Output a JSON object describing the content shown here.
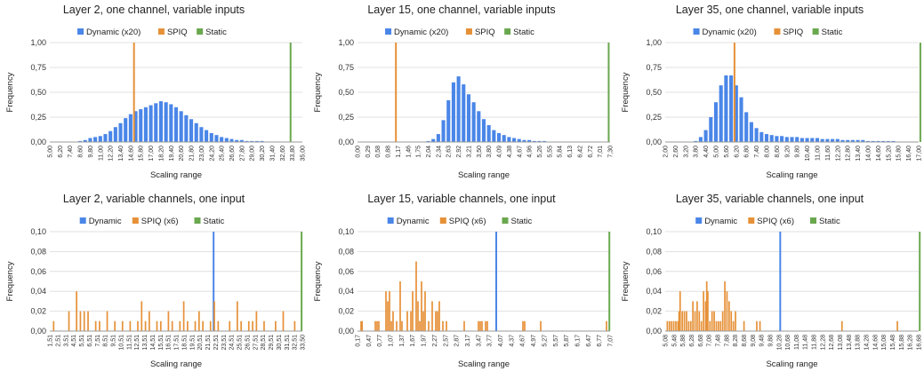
{
  "colors": {
    "dynamic": "#4a86e8",
    "spiq": "#e69138",
    "static": "#6aa84f"
  },
  "chart_data": [
    {
      "type": "bar",
      "title": "Layer 2, one channel, variable inputs",
      "xlabel": "Scaling range",
      "ylabel": "Frequency",
      "ylim": [
        0,
        1
      ],
      "yticks": [
        "0,00",
        "0,25",
        "0,50",
        "0,75",
        "1,00"
      ],
      "legend": {
        "placement": "top",
        "entries": [
          "Dynamic (x20)",
          "SPIQ",
          "Static"
        ]
      },
      "x_ticks": [
        "5,00",
        "6,20",
        "7,40",
        "8,60",
        "9,80",
        "11,00",
        "12,20",
        "13,40",
        "14,60",
        "15,80",
        "17,00",
        "18,20",
        "19,40",
        "20,60",
        "21,80",
        "23,00",
        "24,20",
        "25,40",
        "26,60",
        "27,80",
        "29,00",
        "30,20",
        "31,40",
        "32,60",
        "33,80",
        "35,00"
      ],
      "x_range": [
        5.0,
        35.0
      ],
      "series": [
        {
          "name": "Dynamic (x20)",
          "kind": "bars",
          "x": [
            5.0,
            5.6,
            6.2,
            6.8,
            7.4,
            8.0,
            8.6,
            9.2,
            9.8,
            10.4,
            11.0,
            11.6,
            12.2,
            12.8,
            13.4,
            14.0,
            14.6,
            15.2,
            15.8,
            16.4,
            17.0,
            17.6,
            18.2,
            18.8,
            19.4,
            20.0,
            20.6,
            21.2,
            21.8,
            22.4,
            23.0,
            23.6,
            24.2,
            24.8,
            25.4,
            26.0,
            26.6,
            27.2,
            27.8,
            28.4,
            29.0,
            29.6,
            30.2,
            30.8,
            31.4,
            32.0,
            32.6,
            33.2,
            33.8,
            34.4
          ],
          "values": [
            0.0,
            0.0,
            0.0,
            0.0,
            0.0,
            0.0,
            0.01,
            0.02,
            0.04,
            0.05,
            0.06,
            0.08,
            0.11,
            0.15,
            0.19,
            0.24,
            0.28,
            0.31,
            0.33,
            0.35,
            0.37,
            0.39,
            0.41,
            0.4,
            0.38,
            0.35,
            0.31,
            0.27,
            0.23,
            0.19,
            0.15,
            0.12,
            0.09,
            0.07,
            0.05,
            0.04,
            0.03,
            0.02,
            0.02,
            0.01,
            0.01,
            0.01,
            0.01,
            0.0,
            0.0,
            0.0,
            0.0,
            0.0,
            0.0,
            0.0
          ]
        },
        {
          "name": "SPIQ",
          "kind": "line",
          "x": 15.0,
          "value": 1.0
        },
        {
          "name": "Static",
          "kind": "line",
          "x": 33.6,
          "value": 1.0
        }
      ]
    },
    {
      "type": "bar",
      "title": "Layer 15, one channel, variable inputs",
      "xlabel": "Scaling range",
      "ylabel": "Frequency",
      "ylim": [
        0,
        1
      ],
      "yticks": [
        "0,00",
        "0,25",
        "0,50",
        "0,75",
        "1,00"
      ],
      "legend": {
        "placement": "top",
        "entries": [
          "Dynamic (x20)",
          "SPIQ",
          "Static"
        ]
      },
      "x_ticks": [
        "0,00",
        "0,29",
        "0,58",
        "0,88",
        "1,17",
        "1,46",
        "1,75",
        "2,04",
        "2,34",
        "2,63",
        "2,92",
        "3,21",
        "3,50",
        "3,80",
        "4,09",
        "4,38",
        "4,67",
        "4,96",
        "5,26",
        "5,55",
        "5,84",
        "6,13",
        "6,42",
        "6,72",
        "7,01",
        "7,30"
      ],
      "x_range": [
        0.0,
        7.3
      ],
      "series": [
        {
          "name": "Dynamic (x20)",
          "kind": "bars",
          "x": [
            0.0,
            0.146,
            0.292,
            0.438,
            0.584,
            0.73,
            0.876,
            1.022,
            1.168,
            1.314,
            1.46,
            1.606,
            1.752,
            1.898,
            2.044,
            2.19,
            2.336,
            2.482,
            2.628,
            2.774,
            2.92,
            3.066,
            3.212,
            3.358,
            3.504,
            3.65,
            3.796,
            3.942,
            4.088,
            4.234,
            4.38,
            4.526,
            4.672,
            4.818,
            4.964,
            5.11,
            5.256,
            5.402,
            5.548,
            5.694,
            5.84,
            5.986,
            6.132,
            6.278,
            6.424,
            6.57,
            6.716,
            6.862,
            7.008,
            7.154
          ],
          "values": [
            0.0,
            0.0,
            0.0,
            0.0,
            0.0,
            0.0,
            0.0,
            0.0,
            0.0,
            0.0,
            0.0,
            0.0,
            0.0,
            0.0,
            0.01,
            0.03,
            0.08,
            0.22,
            0.42,
            0.6,
            0.66,
            0.58,
            0.48,
            0.4,
            0.31,
            0.23,
            0.17,
            0.12,
            0.09,
            0.07,
            0.05,
            0.04,
            0.03,
            0.02,
            0.02,
            0.01,
            0.01,
            0.01,
            0.0,
            0.0,
            0.0,
            0.0,
            0.0,
            0.0,
            0.0,
            0.0,
            0.0,
            0.0,
            0.0,
            0.0
          ]
        },
        {
          "name": "SPIQ",
          "kind": "line",
          "x": 1.11,
          "value": 1.0
        },
        {
          "name": "Static",
          "kind": "line",
          "x": 7.26,
          "value": 1.0
        }
      ]
    },
    {
      "type": "bar",
      "title": "Layer 35, one channel, variable inputs",
      "xlabel": "Scaling range",
      "ylabel": "Frequency",
      "ylim": [
        0,
        1
      ],
      "yticks": [
        "0,00",
        "0,25",
        "0,50",
        "0,75",
        "1,00"
      ],
      "legend": {
        "placement": "top",
        "entries": [
          "Dynamic (x20)",
          "SPIQ",
          "Static"
        ]
      },
      "x_ticks": [
        "2,00",
        "2,60",
        "3,20",
        "3,80",
        "4,40",
        "5,00",
        "5,60",
        "6,20",
        "6,80",
        "7,40",
        "8,00",
        "8,60",
        "9,20",
        "9,80",
        "10,40",
        "11,00",
        "11,60",
        "12,20",
        "12,80",
        "13,40",
        "14,00",
        "14,60",
        "15,20",
        "15,80",
        "16,40",
        "17,00"
      ],
      "x_range": [
        2.0,
        17.0
      ],
      "series": [
        {
          "name": "Dynamic (x20)",
          "kind": "bars",
          "x": [
            2.0,
            2.3,
            2.6,
            2.9,
            3.2,
            3.5,
            3.8,
            4.1,
            4.4,
            4.7,
            5.0,
            5.3,
            5.6,
            5.9,
            6.2,
            6.5,
            6.8,
            7.1,
            7.4,
            7.7,
            8.0,
            8.3,
            8.6,
            8.9,
            9.2,
            9.5,
            9.8,
            10.1,
            10.4,
            10.7,
            11.0,
            11.3,
            11.6,
            11.9,
            12.2,
            12.5,
            12.8,
            13.1,
            13.4,
            13.7,
            14.0,
            14.3,
            14.6,
            14.9,
            15.2,
            15.5,
            15.8,
            16.1,
            16.4,
            16.7
          ],
          "values": [
            0.0,
            0.0,
            0.0,
            0.0,
            0.0,
            0.0,
            0.01,
            0.05,
            0.12,
            0.25,
            0.4,
            0.57,
            0.67,
            0.67,
            0.57,
            0.45,
            0.3,
            0.2,
            0.14,
            0.1,
            0.08,
            0.07,
            0.06,
            0.06,
            0.05,
            0.05,
            0.05,
            0.04,
            0.04,
            0.04,
            0.04,
            0.03,
            0.03,
            0.03,
            0.03,
            0.02,
            0.02,
            0.02,
            0.02,
            0.02,
            0.01,
            0.01,
            0.01,
            0.01,
            0.01,
            0.01,
            0.0,
            0.0,
            0.0,
            0.0
          ]
        },
        {
          "name": "SPIQ",
          "kind": "line",
          "x": 6.1,
          "value": 1.0
        },
        {
          "name": "Static",
          "kind": "line",
          "x": 17.1,
          "value": 1.0
        }
      ]
    },
    {
      "type": "bar",
      "title": "Layer 2, variable channels, one input",
      "xlabel": "Scaling range",
      "ylabel": "Frequency",
      "ylim": [
        0,
        0.1
      ],
      "yticks": [
        "0,00",
        "0,02",
        "0,04",
        "0,06",
        "0,08",
        "0,10"
      ],
      "legend": {
        "placement": "top",
        "entries": [
          "Dynamic",
          "SPIQ (x6)",
          "Static"
        ]
      },
      "x_ticks": [
        "1,51",
        "2,51",
        "3,51",
        "4,51",
        "5,51",
        "6,51",
        "7,51",
        "8,51",
        "9,51",
        "10,51",
        "11,51",
        "12,51",
        "13,51",
        "14,51",
        "15,51",
        "16,51",
        "17,51",
        "18,51",
        "19,51",
        "20,51",
        "21,51",
        "22,51",
        "23,51",
        "24,51",
        "25,51",
        "26,51",
        "27,51",
        "28,51",
        "29,51",
        "30,51",
        "31,51",
        "32,51",
        "33,50"
      ],
      "x_range": [
        1.0,
        34.0
      ],
      "series": [
        {
          "name": "Dynamic",
          "kind": "line",
          "x": 22.4,
          "value": 0.1
        },
        {
          "name": "SPIQ (x6)",
          "kind": "bars",
          "x": [
            1.5,
            3.5,
            4.5,
            5.0,
            5.5,
            6.0,
            7.0,
            7.5,
            8.5,
            9.5,
            10.5,
            11.5,
            12.5,
            13.0,
            13.5,
            14.0,
            15.0,
            15.5,
            16.5,
            17.0,
            18.0,
            18.5,
            19.0,
            20.0,
            20.5,
            21.0,
            22.0,
            22.5,
            23.0,
            24.5,
            25.5,
            26.0,
            27.0,
            27.5,
            28.0,
            29.0,
            30.5,
            31.5,
            33.0
          ],
          "values": [
            0.01,
            0.02,
            0.04,
            0.02,
            0.02,
            0.02,
            0.01,
            0.01,
            0.02,
            0.01,
            0.01,
            0.01,
            0.01,
            0.03,
            0.01,
            0.02,
            0.01,
            0.01,
            0.02,
            0.01,
            0.01,
            0.03,
            0.01,
            0.01,
            0.02,
            0.01,
            0.01,
            0.03,
            0.01,
            0.01,
            0.03,
            0.01,
            0.01,
            0.01,
            0.02,
            0.01,
            0.01,
            0.02,
            0.01
          ]
        },
        {
          "name": "Static",
          "kind": "line",
          "x": 33.9,
          "value": 0.1
        }
      ]
    },
    {
      "type": "bar",
      "title": "Layer 15, variable channels, one input",
      "xlabel": "Scaling range",
      "ylabel": "Frequency",
      "ylim": [
        0,
        0.1
      ],
      "yticks": [
        "0,00",
        "0,02",
        "0,04",
        "0,06",
        "0,08",
        "0,10"
      ],
      "legend": {
        "placement": "top",
        "entries": [
          "Dynamic",
          "SPIQ (x6)",
          "Static"
        ]
      },
      "x_ticks": [
        "0,17",
        "0,47",
        "0,77",
        "1,07",
        "1,37",
        "1,67",
        "1,97",
        "2,27",
        "2,57",
        "2,87",
        "3,17",
        "3,47",
        "3,77",
        "4,07",
        "4,37",
        "4,67",
        "4,97",
        "5,27",
        "5,57",
        "5,87",
        "6,17",
        "6,47",
        "6,77",
        "7,07"
      ],
      "x_range": [
        0.1,
        7.2
      ],
      "series": [
        {
          "name": "Dynamic",
          "kind": "line",
          "x": 4.0,
          "value": 0.1
        },
        {
          "name": "SPIQ (x6)",
          "kind": "bars",
          "x": [
            0.2,
            0.23,
            0.6,
            0.65,
            0.7,
            0.9,
            0.95,
            1.0,
            1.05,
            1.1,
            1.2,
            1.3,
            1.35,
            1.5,
            1.6,
            1.65,
            1.75,
            1.8,
            1.85,
            1.9,
            1.95,
            2.0,
            2.1,
            2.2,
            2.3,
            2.35,
            2.4,
            2.5,
            2.6,
            3.1,
            3.5,
            3.55,
            3.6,
            3.7,
            3.75,
            4.75,
            4.8,
            5.25,
            7.1
          ],
          "values": [
            0.01,
            0.01,
            0.01,
            0.01,
            0.01,
            0.04,
            0.03,
            0.04,
            0.01,
            0.02,
            0.01,
            0.05,
            0.01,
            0.02,
            0.02,
            0.04,
            0.07,
            0.03,
            0.01,
            0.05,
            0.02,
            0.04,
            0.01,
            0.03,
            0.02,
            0.02,
            0.03,
            0.01,
            0.01,
            0.01,
            0.01,
            0.01,
            0.01,
            0.01,
            0.01,
            0.01,
            0.01,
            0.01,
            0.01
          ]
        },
        {
          "name": "Static",
          "kind": "line",
          "x": 7.18,
          "value": 0.1
        }
      ]
    },
    {
      "type": "bar",
      "title": "Layer 35, variable channels, one input",
      "xlabel": "Scaling range",
      "ylabel": "Frequency",
      "ylim": [
        0,
        0.1
      ],
      "yticks": [
        "0,00",
        "0,02",
        "0,04",
        "0,06",
        "0,08",
        "0,10"
      ],
      "legend": {
        "placement": "top",
        "entries": [
          "Dynamic",
          "SPIQ (x6)",
          "Static"
        ]
      },
      "x_ticks": [
        "5,08",
        "5,48",
        "5,88",
        "6,28",
        "6,68",
        "7,08",
        "7,48",
        "7,88",
        "8,28",
        "8,68",
        "9,08",
        "9,48",
        "9,88",
        "10,28",
        "10,68",
        "11,08",
        "11,48",
        "11,88",
        "12,28",
        "12,68",
        "13,08",
        "13,48",
        "13,88",
        "14,28",
        "14,68",
        "15,08",
        "15,48",
        "15,88",
        "16,28",
        "16,68"
      ],
      "x_range": [
        5.0,
        16.9
      ],
      "series": [
        {
          "name": "Dynamic",
          "kind": "line",
          "x": 10.4,
          "value": 0.1
        },
        {
          "name": "SPIQ (x6)",
          "kind": "bars",
          "x": [
            5.1,
            5.2,
            5.3,
            5.4,
            5.5,
            5.6,
            5.65,
            5.7,
            5.8,
            5.9,
            6.0,
            6.1,
            6.2,
            6.3,
            6.4,
            6.5,
            6.6,
            6.7,
            6.8,
            6.9,
            6.95,
            7.0,
            7.1,
            7.2,
            7.3,
            7.4,
            7.5,
            7.6,
            7.7,
            7.8,
            7.9,
            8.0,
            8.1,
            8.2,
            8.3,
            8.7,
            9.3,
            9.45,
            13.3,
            15.9
          ],
          "values": [
            0.01,
            0.01,
            0.01,
            0.01,
            0.01,
            0.01,
            0.02,
            0.04,
            0.02,
            0.02,
            0.02,
            0.01,
            0.01,
            0.03,
            0.02,
            0.03,
            0.02,
            0.01,
            0.04,
            0.03,
            0.05,
            0.04,
            0.01,
            0.02,
            0.02,
            0.01,
            0.01,
            0.01,
            0.02,
            0.05,
            0.04,
            0.03,
            0.02,
            0.01,
            0.02,
            0.01,
            0.01,
            0.01,
            0.01,
            0.01
          ]
        },
        {
          "name": "Static",
          "kind": "line",
          "x": 16.95,
          "value": 0.1
        }
      ]
    }
  ]
}
